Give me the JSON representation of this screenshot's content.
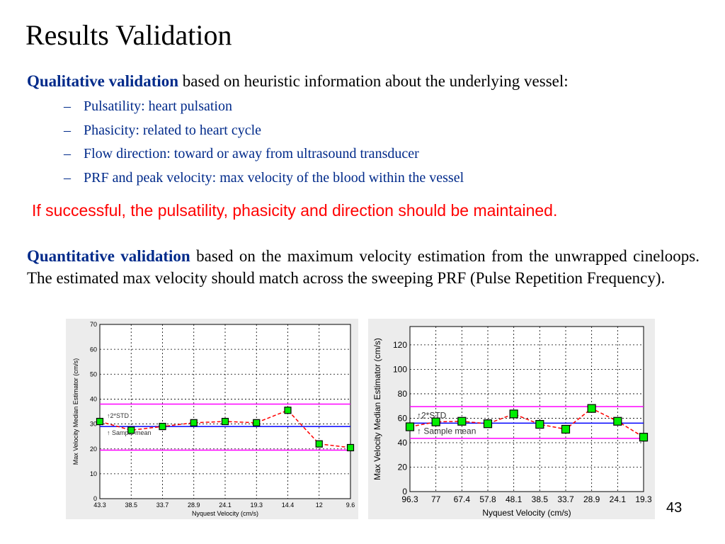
{
  "slide": {
    "title": "Results Validation",
    "qualitative": {
      "lead": "Qualitative validation",
      "text": " based on heuristic information about the underlying vessel:"
    },
    "bullets": [
      "Pulsatility: heart pulsation",
      "Phasicity: related to heart cycle",
      "Flow direction: toward or away from ultrasound transducer",
      "PRF and peak velocity: max velocity of the blood within the vessel"
    ],
    "bullet_marker": "–",
    "note": "If successful, the pulsatility, phasicity and direction should be maintained.",
    "quantitative": {
      "lead": "Quantitative validation",
      "text": " based on the maximum velocity estimation from the unwrapped cineloops. The estimated max velocity should match across the sweeping PRF (Pulse Repetition Frequency)."
    },
    "page_number": "43"
  },
  "colors": {
    "accent_blue": "#002a8a",
    "note_red": "#ff0000",
    "series_line": "#ff0000",
    "marker_fill": "#00ee00",
    "mean_line": "#0000ff",
    "std_line": "#ff00ff"
  },
  "chart_data": [
    {
      "type": "line",
      "title": "",
      "xlabel": "Nyquest Velocity (cm/s)",
      "ylabel": "Max Velocity Median Estimator (cm/s)",
      "categories": [
        "43.3",
        "38.5",
        "33.7",
        "28.9",
        "24.1",
        "19.3",
        "14.4",
        "12",
        "9.6"
      ],
      "series": [
        {
          "values": [
            31,
            27.5,
            29,
            30.5,
            31,
            30.5,
            35.5,
            22,
            20.5
          ]
        }
      ],
      "reference_lines": [
        {
          "label": "",
          "value": 38,
          "color": "#ff00ff"
        },
        {
          "label": "Sample mean",
          "value": 29,
          "color": "#0000ff"
        },
        {
          "label": "",
          "value": 19.5,
          "color": "#ff00ff"
        }
      ],
      "annotations": [
        "2*STD",
        "Sample mean"
      ],
      "ylim": [
        0,
        70
      ],
      "yticks": [
        0,
        10,
        20,
        30,
        40,
        50,
        60,
        70
      ],
      "grid": true,
      "legend": "none"
    },
    {
      "type": "line",
      "title": "",
      "xlabel": "Nyquest Velocity (cm/s)",
      "ylabel": "Max Velocity Median Estimator (cm/s)",
      "categories": [
        "96.3",
        "77",
        "67.4",
        "57.8",
        "48.1",
        "38.5",
        "33.7",
        "28.9",
        "24.1",
        "19.3"
      ],
      "series": [
        {
          "values": [
            53,
            57,
            57.5,
            55.5,
            63.5,
            55,
            51,
            68,
            57.5,
            44.5
          ]
        }
      ],
      "reference_lines": [
        {
          "label": "",
          "value": 69.5,
          "color": "#ff00ff"
        },
        {
          "label": "Sample mean",
          "value": 56,
          "color": "#0000ff"
        },
        {
          "label": "",
          "value": 43.5,
          "color": "#ff00ff"
        }
      ],
      "annotations": [
        "2*STD",
        "Sample mean"
      ],
      "ylim": [
        0,
        135
      ],
      "yticks": [
        0,
        20,
        40,
        60,
        80,
        100,
        120
      ],
      "grid": true,
      "legend": "none"
    }
  ]
}
